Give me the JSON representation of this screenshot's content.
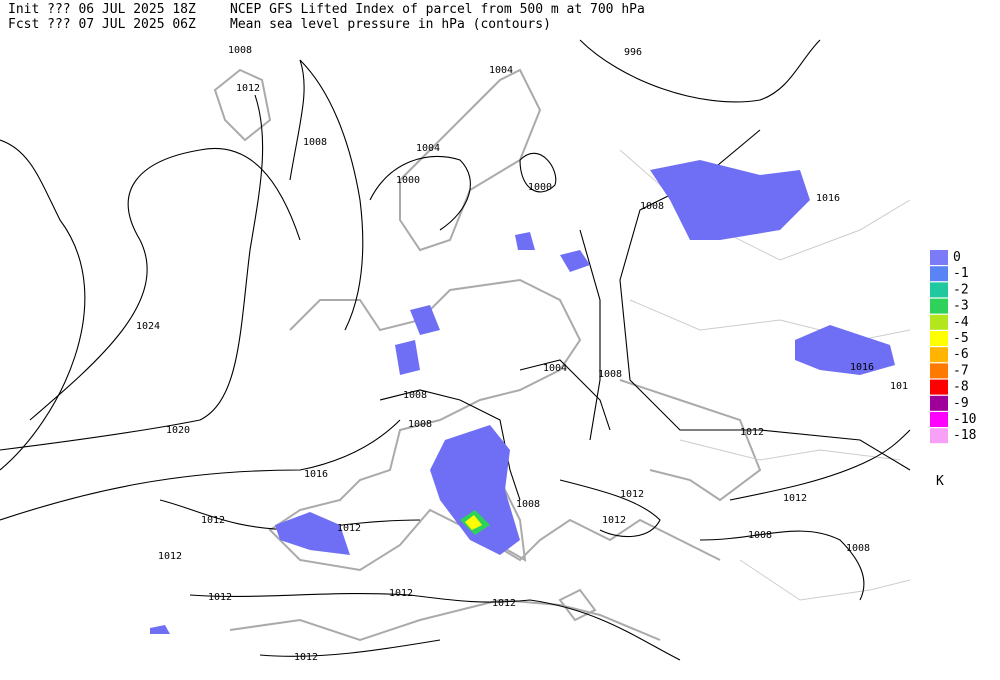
{
  "header": {
    "init": "Init  ??? 06 JUL 2025 18Z",
    "title": "NCEP GFS Lifted Index of parcel from 500 m at 700 hPa",
    "fcst": "Fcst ??? 07 JUL 2025 06Z",
    "subtitle": "Mean sea level pressure in hPa (contours)"
  },
  "contour_labels": [
    "1008",
    "1012",
    "996",
    "1004",
    "1008",
    "1004",
    "1000",
    "1000",
    "1008",
    "1016",
    "1024",
    "1004",
    "1008",
    "1008",
    "1008",
    "1016",
    "101",
    "1020",
    "1012",
    "1016",
    "1008",
    "1012",
    "1012",
    "1012",
    "1012",
    "1012",
    "1008",
    "1008",
    "1012",
    "1012",
    "1012",
    "1012",
    "1012"
  ],
  "legend": {
    "items": [
      {
        "label": "0",
        "color": "#7b7bf7"
      },
      {
        "label": "-1",
        "color": "#5a84f5"
      },
      {
        "label": "-2",
        "color": "#20c8a0"
      },
      {
        "label": "-3",
        "color": "#2ed25a"
      },
      {
        "label": "-4",
        "color": "#b4e61e"
      },
      {
        "label": "-5",
        "color": "#ffff00"
      },
      {
        "label": "-6",
        "color": "#ffb400"
      },
      {
        "label": "-7",
        "color": "#ff7800"
      },
      {
        "label": "-8",
        "color": "#ff0000"
      },
      {
        "label": "-9",
        "color": "#a0009a"
      },
      {
        "label": "-10",
        "color": "#ff00ff"
      },
      {
        "label": "-18",
        "color": "#f8a0f8"
      }
    ],
    "unit": "K"
  }
}
